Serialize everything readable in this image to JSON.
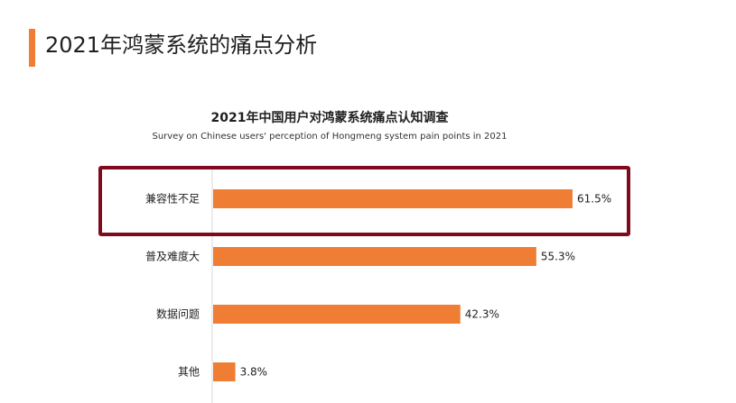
{
  "page": {
    "title": "2021年鸿蒙系统的痛点分析"
  },
  "colors": {
    "accent": "#ef7d34",
    "bar": "#ef7d34",
    "highlight": "#7f0a1e",
    "axis": "#d9d9d9"
  },
  "chart_data": {
    "type": "bar",
    "orientation": "horizontal",
    "title": "2021年中国用户对鸿蒙系统痛点认知调查",
    "subtitle": "Survey on Chinese users' perception of Hongmeng system pain points in 2021",
    "categories": [
      "兼容性不足",
      "普及难度大",
      "数据问题",
      "其他"
    ],
    "values": [
      61.5,
      55.3,
      42.3,
      3.8
    ],
    "labels": [
      "61.5%",
      "55.3%",
      "42.3%",
      "3.8%"
    ],
    "unit": "%",
    "xlim": [
      0,
      70
    ],
    "grid": false,
    "highlighted_category": "兼容性不足"
  }
}
